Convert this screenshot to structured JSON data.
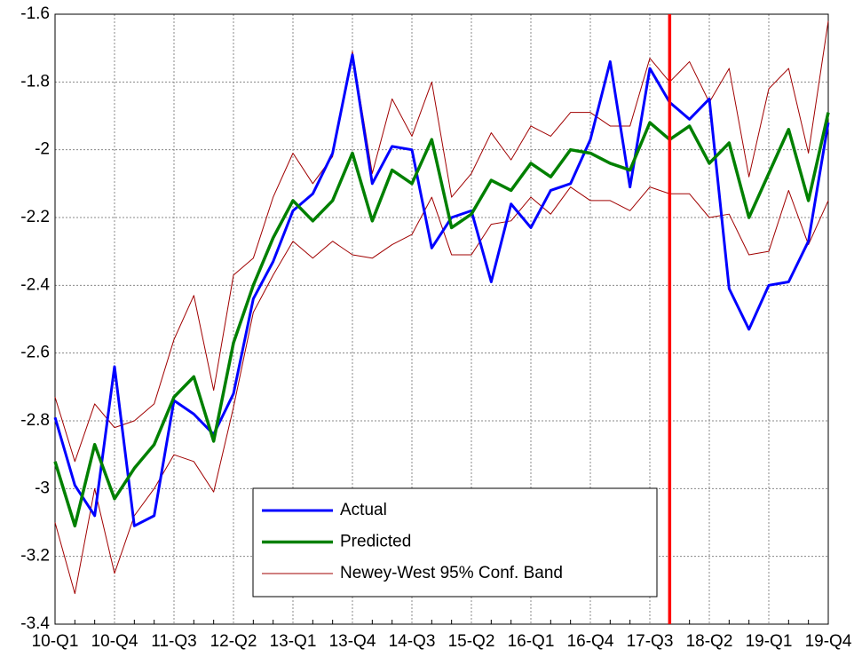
{
  "chart_data": {
    "type": "line",
    "categories": [
      "10-Q1",
      null,
      null,
      "10-Q4",
      null,
      null,
      "11-Q3",
      null,
      null,
      "12-Q2",
      null,
      null,
      "13-Q1",
      null,
      null,
      "13-Q4",
      null,
      null,
      "14-Q3",
      null,
      null,
      "15-Q2",
      null,
      null,
      "16-Q1",
      null,
      null,
      "16-Q4",
      null,
      null,
      "17-Q3",
      null,
      null,
      "18-Q2",
      null,
      null,
      "19-Q1",
      null,
      null,
      "19-Q4"
    ],
    "series": [
      {
        "name": "Actual",
        "color": "#0000ff",
        "values": [
          -2.79,
          -2.99,
          -3.08,
          -2.64,
          -3.11,
          -3.08,
          -2.74,
          -2.78,
          -2.84,
          -2.72,
          -2.44,
          -2.33,
          -2.18,
          -2.13,
          -2.01,
          -1.72,
          -2.1,
          -1.99,
          -2.0,
          -2.29,
          -2.2,
          -2.18,
          -2.39,
          -2.16,
          -2.23,
          -2.12,
          -2.1,
          -1.97,
          -1.74,
          -2.11,
          -1.76,
          -1.86,
          -1.91,
          -1.85,
          -2.41,
          -2.53,
          -2.4,
          -2.39,
          -2.27,
          -1.92
        ]
      },
      {
        "name": "Predicted",
        "color": "#008000",
        "values": [
          -2.92,
          -3.11,
          -2.87,
          -3.03,
          -2.94,
          -2.87,
          -2.73,
          -2.67,
          -2.86,
          -2.57,
          -2.4,
          -2.26,
          -2.15,
          -2.21,
          -2.15,
          -2.01,
          -2.21,
          -2.06,
          -2.1,
          -1.97,
          -2.23,
          -2.19,
          -2.09,
          -2.12,
          -2.04,
          -2.08,
          -2.0,
          -2.01,
          -2.04,
          -2.06,
          -1.92,
          -1.97,
          -1.93,
          -2.04,
          -1.98,
          -2.2,
          -2.07,
          -1.94,
          -2.15,
          -1.89
        ]
      }
    ],
    "band": {
      "name": "Newey-West 95% Conf. Band",
      "color": "#a00000",
      "upper": [
        -2.73,
        -2.92,
        -2.75,
        -2.82,
        -2.8,
        -2.75,
        -2.56,
        -2.43,
        -2.71,
        -2.37,
        -2.32,
        -2.14,
        -2.01,
        -2.1,
        -2.02,
        -1.71,
        -2.07,
        -1.85,
        -1.96,
        -1.8,
        -2.14,
        -2.07,
        -1.95,
        -2.03,
        -1.93,
        -1.96,
        -1.89,
        -1.89,
        -1.93,
        -1.93,
        -1.73,
        -1.8,
        -1.74,
        -1.86,
        -1.76,
        -2.08,
        -1.82,
        -1.76,
        -2.01,
        -1.62
      ],
      "lower": [
        -3.1,
        -3.31,
        -3.0,
        -3.25,
        -3.08,
        -3.0,
        -2.9,
        -2.92,
        -3.01,
        -2.76,
        -2.48,
        -2.37,
        -2.27,
        -2.32,
        -2.27,
        -2.31,
        -2.32,
        -2.28,
        -2.25,
        -2.14,
        -2.31,
        -2.31,
        -2.22,
        -2.21,
        -2.14,
        -2.19,
        -2.11,
        -2.15,
        -2.15,
        -2.18,
        -2.11,
        -2.13,
        -2.13,
        -2.2,
        -2.19,
        -2.31,
        -2.3,
        -2.12,
        -2.28,
        -2.15
      ]
    },
    "vline": 31,
    "vline_color": "#ff0000",
    "ylim": [
      -3.4,
      -1.6
    ],
    "yticks": [
      -1.6,
      -1.8,
      -2,
      -2.2,
      -2.4,
      -2.6,
      -2.8,
      -3,
      -3.2,
      -3.4
    ],
    "grid": true
  }
}
